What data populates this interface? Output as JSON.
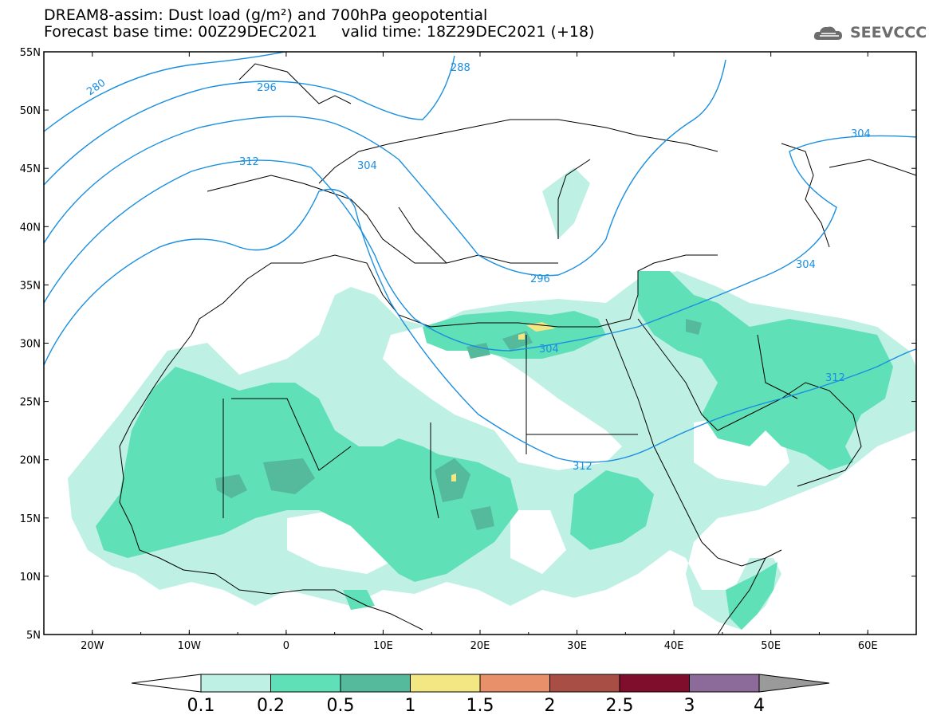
{
  "header": {
    "line1": "DREAM8-assim: Dust load (g/m²) and 700hPa geopotential",
    "line2": "Forecast base time: 00Z29DEC2021     valid time: 18Z29DEC2021 (+18)",
    "logo_text": "SEEVCCC"
  },
  "map": {
    "type": "contour-map",
    "lon_range": [
      -25,
      65
    ],
    "lat_range": [
      5,
      55
    ],
    "lat_ticks": [
      "5N",
      "10N",
      "15N",
      "20N",
      "25N",
      "30N",
      "35N",
      "40N",
      "45N",
      "50N",
      "55N"
    ],
    "lon_ticks": [
      "20W",
      "10W",
      "0",
      "10E",
      "20E",
      "30E",
      "40E",
      "50E",
      "60E"
    ],
    "geopotential_labels": [
      "280",
      "288",
      "296",
      "304",
      "312",
      "304",
      "296",
      "304",
      "304",
      "312",
      "312"
    ],
    "contour_color": "#1a8fe0"
  },
  "colorbar": {
    "levels": [
      "0.1",
      "0.2",
      "0.5",
      "1",
      "1.5",
      "2",
      "2.5",
      "3",
      "4"
    ],
    "colors": [
      "#bff0e4",
      "#5fe0b7",
      "#55b99c",
      "#f3e784",
      "#e8906a",
      "#a84e44",
      "#7f0d2c",
      "#8c6a9a",
      "#9a9a9a"
    ],
    "under_color": "#ffffff"
  }
}
